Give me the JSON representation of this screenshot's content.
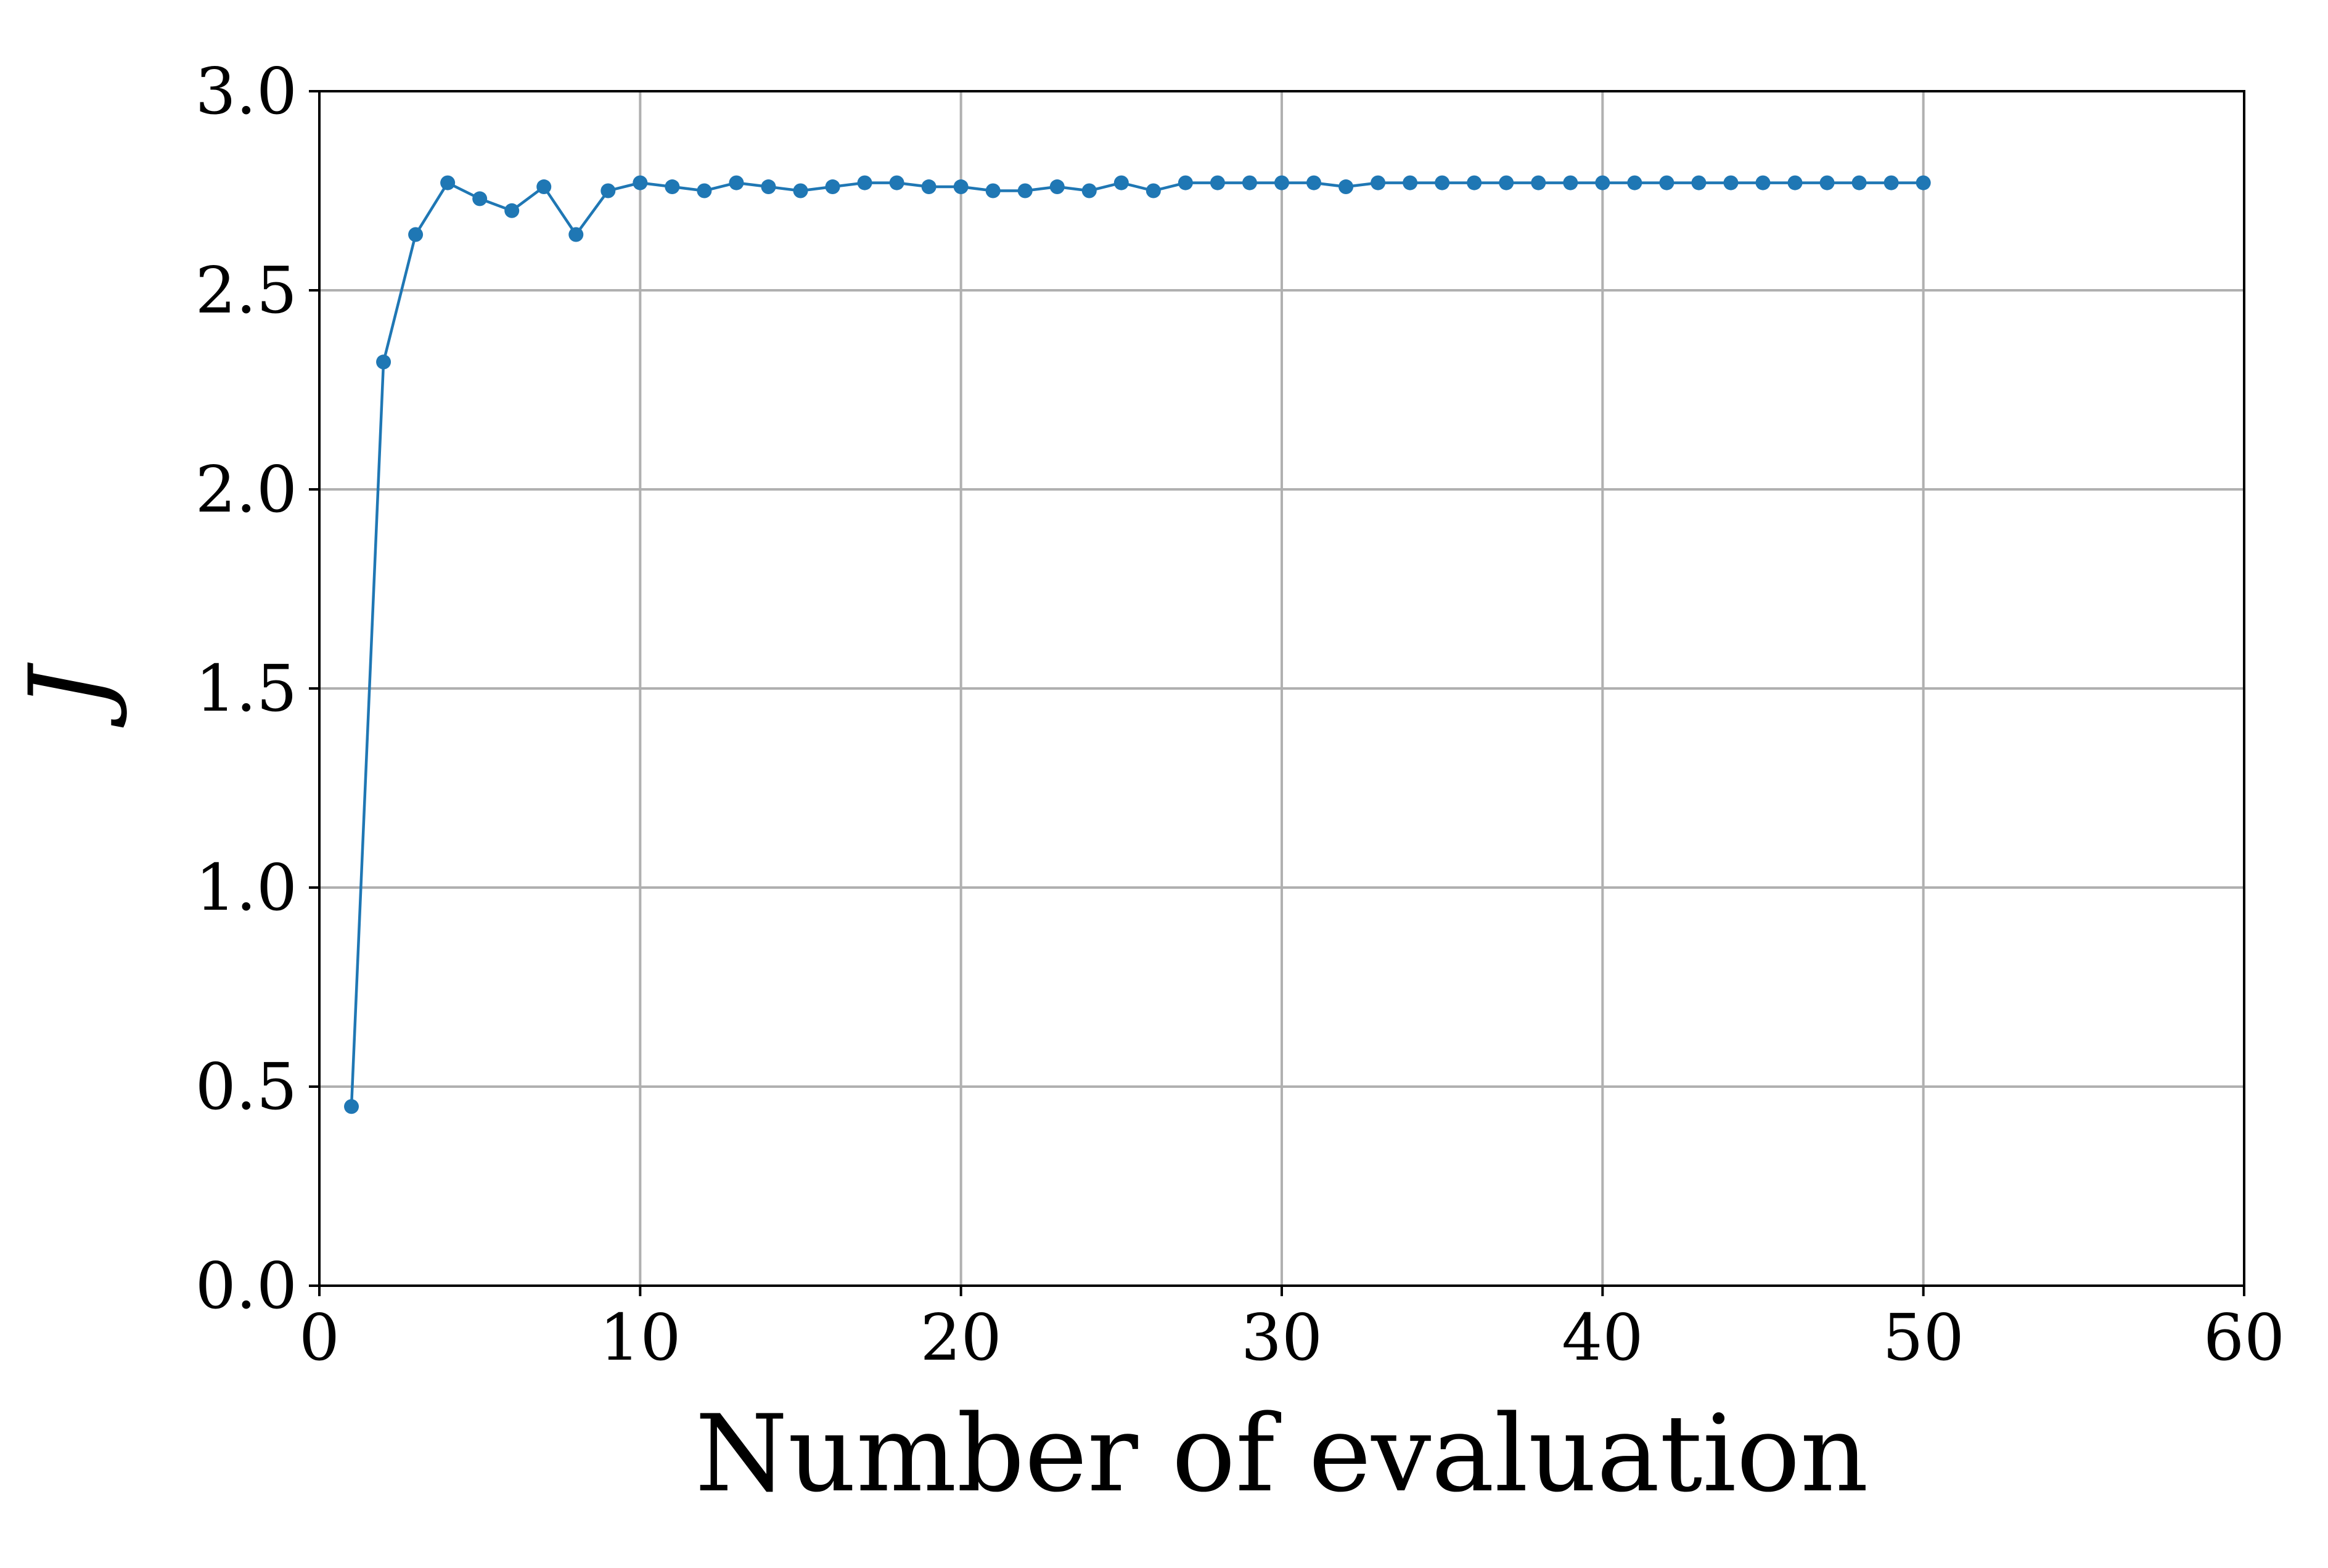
{
  "chart_data": {
    "type": "line",
    "xlabel": "Number of evaluation",
    "ylabel": "J",
    "xlim": [
      0,
      60
    ],
    "ylim": [
      0.0,
      3.0
    ],
    "x_ticks": [
      0,
      10,
      20,
      30,
      40,
      50,
      60
    ],
    "y_ticks": [
      0.0,
      0.5,
      1.0,
      1.5,
      2.0,
      2.5,
      3.0
    ],
    "x_tick_labels": [
      "0",
      "10",
      "20",
      "30",
      "40",
      "50",
      "60"
    ],
    "y_tick_labels": [
      "0.0",
      "0.5",
      "1.0",
      "1.5",
      "2.0",
      "2.5",
      "3.0"
    ],
    "grid": true,
    "series": [
      {
        "color": "#1f77b4",
        "marker": "circle",
        "x": [
          1,
          2,
          3,
          4,
          5,
          6,
          7,
          8,
          9,
          10,
          11,
          12,
          13,
          14,
          15,
          16,
          17,
          18,
          19,
          20,
          21,
          22,
          23,
          24,
          25,
          26,
          27,
          28,
          29,
          30,
          31,
          32,
          33,
          34,
          35,
          36,
          37,
          38,
          39,
          40,
          41,
          42,
          43,
          44,
          45,
          46,
          47,
          48,
          49,
          50
        ],
        "y": [
          0.45,
          2.32,
          2.64,
          2.77,
          2.73,
          2.7,
          2.76,
          2.64,
          2.75,
          2.77,
          2.76,
          2.75,
          2.77,
          2.76,
          2.75,
          2.76,
          2.77,
          2.77,
          2.76,
          2.76,
          2.75,
          2.75,
          2.76,
          2.75,
          2.77,
          2.75,
          2.77,
          2.77,
          2.77,
          2.77,
          2.77,
          2.76,
          2.77,
          2.77,
          2.77,
          2.77,
          2.77,
          2.77,
          2.77,
          2.77,
          2.77,
          2.77,
          2.77,
          2.77,
          2.77,
          2.77,
          2.77,
          2.77,
          2.77,
          2.77
        ]
      }
    ]
  }
}
